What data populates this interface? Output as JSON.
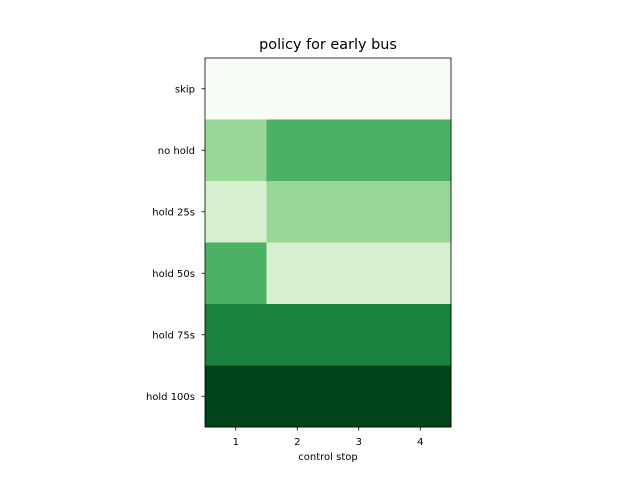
{
  "chart_data": {
    "type": "heatmap",
    "title": "policy for early bus",
    "xlabel": "control stop",
    "ylabel": "",
    "x_categories": [
      "1",
      "2",
      "3",
      "4"
    ],
    "y_categories": [
      "skip",
      "no hold",
      "hold 25s",
      "hold 50s",
      "hold 75s",
      "hold 100s"
    ],
    "colormap": "Greens",
    "values": [
      [
        0.02,
        0.02,
        0.02,
        0.02
      ],
      [
        0.35,
        0.6,
        0.6,
        0.6
      ],
      [
        0.15,
        0.35,
        0.35,
        0.35
      ],
      [
        0.6,
        0.15,
        0.15,
        0.15
      ],
      [
        0.8,
        0.8,
        0.8,
        0.8
      ],
      [
        0.99,
        0.99,
        0.99,
        0.99
      ]
    ],
    "colors": {
      "0.02": "#f7fcf5",
      "0.15": "#d5efcf",
      "0.35": "#9ad695",
      "0.6": "#4db163",
      "0.8": "#18823e",
      "0.99": "#00441b"
    },
    "grid": false,
    "legend": "none"
  }
}
